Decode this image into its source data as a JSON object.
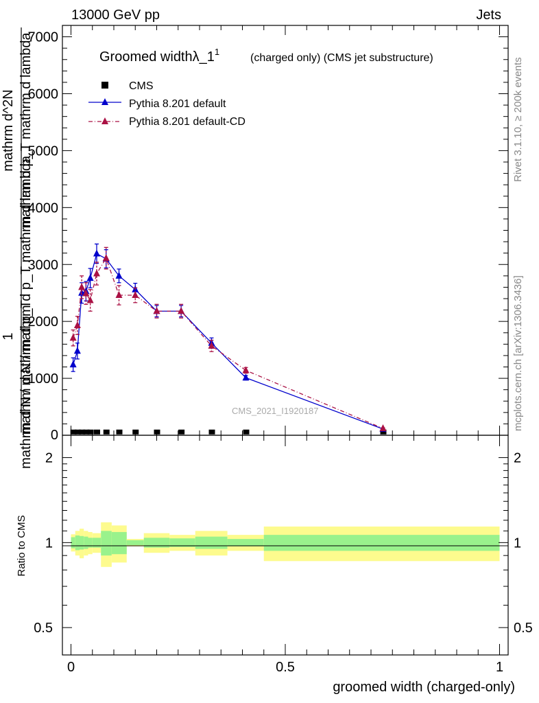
{
  "header": {
    "left": "13000 GeV pp",
    "right": "Jets"
  },
  "side_labels": {
    "rivet": "Rivet 3.1.10, ≥ 200k events",
    "mcplots": "mcplots.cern.ch [arXiv:1306.3436]"
  },
  "chart_data": [
    {
      "type": "line",
      "title_main": "Groomed widthλ_1",
      "title_sup": "1",
      "title_note": "(charged only) (CMS jet substructure)",
      "watermark": "CMS_2021_I1920187",
      "ylabel_top": "1",
      "ylabel_numerator": "mathrm d N / mathrm d p_T mathrm d lambda",
      "ylabel_denominator": "mathrm d N / mathrm d p_T",
      "ylabel_fraction_numerator": "mathrm d^2N",
      "ylabel_fraction_denominator": "mathrm d p_T mathrm d lambda",
      "xlim": [
        -0.02,
        1.02
      ],
      "ylim": [
        0,
        7200
      ],
      "yticks": [
        1000,
        2000,
        3000,
        4000,
        5000,
        6000,
        7000
      ],
      "ytick_labels": [
        "1000",
        "2000",
        "3000",
        "4000",
        "5000",
        "6000",
        "7000"
      ],
      "grid": false,
      "legend_position": "top-left",
      "series": [
        {
          "name": "CMS",
          "color": "#000000",
          "marker": "square",
          "x": [
            0.005,
            0.015,
            0.025,
            0.035,
            0.045,
            0.06,
            0.082,
            0.112,
            0.15,
            0.2,
            0.257,
            0.328,
            0.408,
            0.728
          ],
          "y": [
            3,
            3,
            3,
            3,
            3,
            3,
            3,
            3,
            3,
            3,
            3,
            3,
            3,
            3
          ]
        },
        {
          "name": "Pythia 8.201 default",
          "color": "#0000cc",
          "marker": "triangle",
          "line": "solid",
          "x": [
            0.005,
            0.015,
            0.025,
            0.035,
            0.045,
            0.06,
            0.082,
            0.112,
            0.15,
            0.2,
            0.257,
            0.328,
            0.408,
            0.728
          ],
          "y": [
            1240,
            1480,
            2500,
            2530,
            2760,
            3190,
            3100,
            2800,
            2560,
            2180,
            2180,
            1620,
            1010,
            110
          ],
          "err": [
            120,
            140,
            180,
            170,
            170,
            170,
            160,
            120,
            110,
            100,
            100,
            90,
            40,
            10
          ]
        },
        {
          "name": "Pythia 8.201 default-CD",
          "color": "#aa1144",
          "marker": "triangle",
          "line": "dashdot",
          "x": [
            0.005,
            0.015,
            0.025,
            0.035,
            0.045,
            0.06,
            0.082,
            0.112,
            0.15,
            0.2,
            0.257,
            0.328,
            0.408,
            0.728
          ],
          "y": [
            1710,
            1930,
            2600,
            2490,
            2370,
            2840,
            3110,
            2460,
            2460,
            2180,
            2180,
            1570,
            1140,
            120
          ],
          "err": [
            140,
            160,
            200,
            190,
            190,
            200,
            190,
            170,
            130,
            120,
            120,
            100,
            50,
            10
          ]
        }
      ]
    },
    {
      "type": "area",
      "ylabel": "Ratio to CMS",
      "xlabel": "groomed width (charged-only)",
      "xlim": [
        -0.02,
        1.02
      ],
      "ylim": [
        0.4,
        2.4
      ],
      "yticks": [
        0.5,
        1,
        2
      ],
      "ytick_labels": [
        "0.5",
        "1",
        "2"
      ],
      "xticks": [
        0,
        0.5,
        1
      ],
      "xtick_labels": [
        "0",
        "0.5",
        "1"
      ],
      "bands": [
        {
          "x0": 0.0,
          "x1": 0.01,
          "stat_lo": 0.955,
          "stat_hi": 1.045,
          "tot_lo": 0.93,
          "tot_hi": 1.07
        },
        {
          "x0": 0.01,
          "x1": 0.02,
          "stat_lo": 0.94,
          "stat_hi": 1.06,
          "tot_lo": 0.9,
          "tot_hi": 1.1
        },
        {
          "x0": 0.02,
          "x1": 0.03,
          "stat_lo": 0.945,
          "stat_hi": 1.055,
          "tot_lo": 0.88,
          "tot_hi": 1.12
        },
        {
          "x0": 0.03,
          "x1": 0.04,
          "stat_lo": 0.95,
          "stat_hi": 1.05,
          "tot_lo": 0.9,
          "tot_hi": 1.1
        },
        {
          "x0": 0.04,
          "x1": 0.05,
          "stat_lo": 0.96,
          "stat_hi": 1.04,
          "tot_lo": 0.91,
          "tot_hi": 1.09
        },
        {
          "x0": 0.05,
          "x1": 0.07,
          "stat_lo": 0.96,
          "stat_hi": 1.04,
          "tot_lo": 0.92,
          "tot_hi": 1.08
        },
        {
          "x0": 0.07,
          "x1": 0.095,
          "stat_lo": 0.9,
          "stat_hi": 1.1,
          "tot_lo": 0.82,
          "tot_hi": 1.18
        },
        {
          "x0": 0.095,
          "x1": 0.13,
          "stat_lo": 0.91,
          "stat_hi": 1.09,
          "tot_lo": 0.85,
          "tot_hi": 1.15
        },
        {
          "x0": 0.13,
          "x1": 0.17,
          "stat_lo": 0.98,
          "stat_hi": 1.02,
          "tot_lo": 0.97,
          "tot_hi": 1.03
        },
        {
          "x0": 0.17,
          "x1": 0.23,
          "stat_lo": 0.96,
          "stat_hi": 1.04,
          "tot_lo": 0.92,
          "tot_hi": 1.08
        },
        {
          "x0": 0.23,
          "x1": 0.29,
          "stat_lo": 0.965,
          "stat_hi": 1.035,
          "tot_lo": 0.935,
          "tot_hi": 1.065
        },
        {
          "x0": 0.29,
          "x1": 0.365,
          "stat_lo": 0.95,
          "stat_hi": 1.05,
          "tot_lo": 0.9,
          "tot_hi": 1.1
        },
        {
          "x0": 0.365,
          "x1": 0.45,
          "stat_lo": 0.97,
          "stat_hi": 1.03,
          "tot_lo": 0.935,
          "tot_hi": 1.065
        },
        {
          "x0": 0.45,
          "x1": 1.0,
          "stat_lo": 0.935,
          "stat_hi": 1.065,
          "tot_lo": 0.86,
          "tot_hi": 1.14
        }
      ]
    }
  ],
  "colors": {
    "stat_band": "#99f28c",
    "total_band": "#fdfb8e",
    "cms": "#000000",
    "default": "#0000cc",
    "default_cd": "#aa1144"
  }
}
